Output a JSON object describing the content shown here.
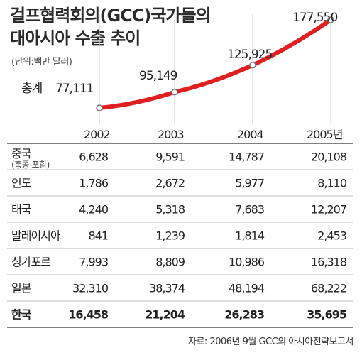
{
  "title_line1": "걸프협력회의(GCC)국가들의",
  "title_line2": "대아시아 수출 추이",
  "unit": "(단위:백만 달러)",
  "total_label": "총계",
  "source": "자료: 2006년 9월 GCC의 아시아전략보고서",
  "colors": {
    "line": "#e02020",
    "grid": "#cfcfcf",
    "marker_fill": "#ffffff",
    "marker_stroke": "#777777"
  },
  "chart_data": {
    "type": "line",
    "x": [
      "2002",
      "2003",
      "2004",
      "2005년"
    ],
    "series": [
      {
        "name": "총계",
        "values": [
          77111,
          95149,
          125925,
          177550
        ]
      }
    ],
    "value_labels": [
      "77,111",
      "95,149",
      "125,925",
      "177,550"
    ]
  },
  "table": {
    "rows": [
      {
        "label": "중국",
        "sublabel": "(홍콩 포함)",
        "values": [
          "6,628",
          "9,591",
          "14,787",
          "20,108"
        ]
      },
      {
        "label": "인도",
        "values": [
          "1,786",
          "2,672",
          "5,977",
          "8,110"
        ]
      },
      {
        "label": "태국",
        "values": [
          "4,240",
          "5,318",
          "7,683",
          "12,207"
        ]
      },
      {
        "label": "말레이시아",
        "values": [
          "841",
          "1,239",
          "1,814",
          "2,453"
        ]
      },
      {
        "label": "싱가포르",
        "values": [
          "7,993",
          "8,809",
          "10,986",
          "16,318"
        ]
      },
      {
        "label": "일본",
        "values": [
          "32,310",
          "38,374",
          "48,194",
          "68,222"
        ]
      },
      {
        "label": "한국",
        "bold": true,
        "values": [
          "16,458",
          "21,204",
          "26,283",
          "35,695"
        ]
      }
    ]
  }
}
